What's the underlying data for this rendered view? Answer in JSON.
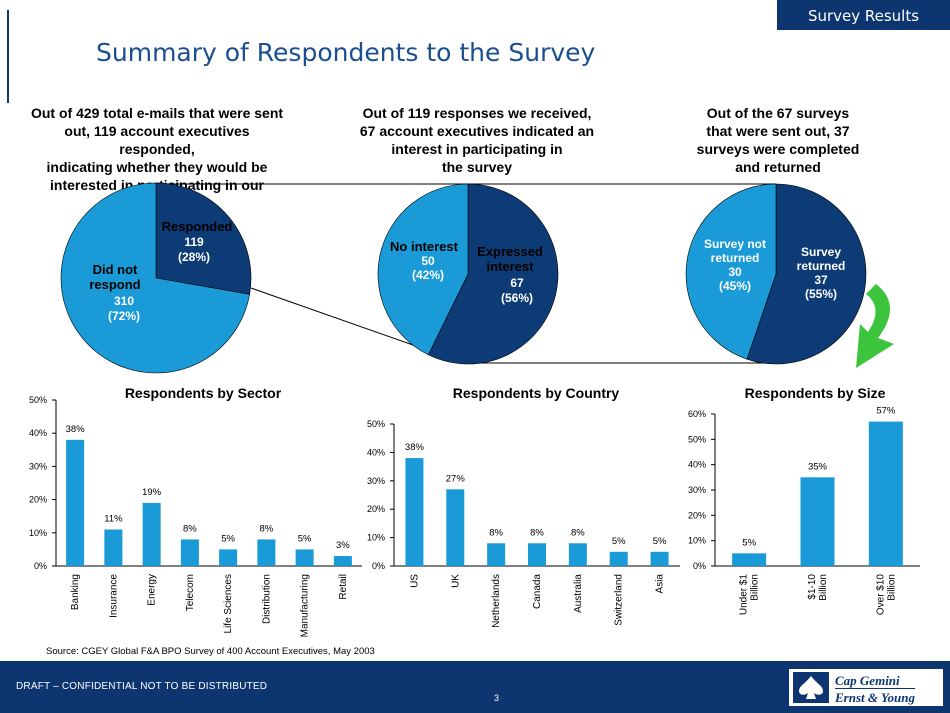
{
  "header": {
    "tag": "Survey Results",
    "title": "Summary of Respondents to the Survey"
  },
  "captions": [
    {
      "lines": [
        "Out of 429 total e-mails that were sent",
        "out, 119 account executives responded,",
        "indicating whether they would be",
        "interested in participating in our survey"
      ]
    },
    {
      "lines": [
        "Out of 119 responses we received,",
        "67 account executives indicated an",
        "interest in participating in",
        "the survey"
      ]
    },
    {
      "lines": [
        "Out of the 67 surveys",
        "that were sent out, 37",
        "surveys were completed",
        "and returned"
      ]
    }
  ],
  "pies": [
    {
      "slices": [
        {
          "name": "Responded",
          "label": "Responded",
          "value_text": "119",
          "pct_text": "(28%)",
          "value": 119,
          "color": "#0d3b75"
        },
        {
          "name": "Did not respond",
          "label1": "Did not",
          "label2": "respond",
          "value_text": "310",
          "pct_text": "(72%)",
          "value": 310,
          "color": "#1a9bd7"
        }
      ]
    },
    {
      "slices": [
        {
          "name": "Expressed interest",
          "label1": "Expressed",
          "label2": "interest",
          "value_text": "67",
          "pct_text": "(56%)",
          "value": 67,
          "color": "#0d3b75"
        },
        {
          "name": "No interest",
          "label": "No interest",
          "value_text": "50",
          "pct_text": "(42%)",
          "value": 50,
          "color": "#1a9bd7"
        }
      ]
    },
    {
      "slices": [
        {
          "name": "Survey returned",
          "label1": "Survey",
          "label2": "returned",
          "value_text": "37",
          "pct_text": "(55%)",
          "value": 37,
          "color": "#0d3b75"
        },
        {
          "name": "Survey not returned",
          "label1": "Survey not",
          "label2": "returned",
          "value_text": "30",
          "pct_text": "(45%)",
          "value": 30,
          "color": "#1a9bd7"
        }
      ]
    }
  ],
  "arrow_color": "#3cc43c",
  "bar_color": "#1a9bd7",
  "chart_data": [
    {
      "type": "bar",
      "title": "Respondents by Sector",
      "categories": [
        "Banking",
        "Insurance",
        "Energy",
        "Telecom",
        "Life Sciences",
        "Distribution",
        "Manufacturing",
        "Retail"
      ],
      "values": [
        38,
        11,
        19,
        8,
        5,
        8,
        5,
        3
      ],
      "value_labels": [
        "38%",
        "11%",
        "19%",
        "8%",
        "5%",
        "8%",
        "5%",
        "3%"
      ],
      "yticks": [
        "0%",
        "10%",
        "20%",
        "30%",
        "40%",
        "50%"
      ],
      "ylim": [
        0,
        50
      ]
    },
    {
      "type": "bar",
      "title": "Respondents by Country",
      "categories": [
        "US",
        "UK",
        "Netherlands",
        "Canada",
        "Australia",
        "Switzerland",
        "Asia"
      ],
      "values": [
        38,
        27,
        8,
        8,
        8,
        5,
        5
      ],
      "value_labels": [
        "38%",
        "27%",
        "8%",
        "8%",
        "8%",
        "5%",
        "5%"
      ],
      "yticks": [
        "0%",
        "10%",
        "20%",
        "30%",
        "40%",
        "50%"
      ],
      "ylim": [
        0,
        50
      ]
    },
    {
      "type": "bar",
      "title": "Respondents by Size",
      "categories": [
        "Under $1 Billion",
        "$1-10 Billion",
        "Over $10 Billion"
      ],
      "category_lines": [
        [
          "Under $1",
          "Billion"
        ],
        [
          "$1-10",
          "Billion"
        ],
        [
          "Over $10",
          "Billion"
        ]
      ],
      "values": [
        5,
        35,
        57
      ],
      "value_labels": [
        "5%",
        "35%",
        "57%"
      ],
      "yticks": [
        "0%",
        "10%",
        "20%",
        "30%",
        "40%",
        "50%",
        "60%"
      ],
      "ylim": [
        0,
        60
      ]
    }
  ],
  "source": "Source: CGEY Global F&A BPO Survey of 400 Account Executives, May 2003",
  "footer": {
    "draft": "DRAFT – CONFIDENTIAL NOT TO BE DISTRIBUTED",
    "page": "3",
    "logo_line1": "Cap Gemini",
    "logo_line2": "Ernst & Young"
  }
}
